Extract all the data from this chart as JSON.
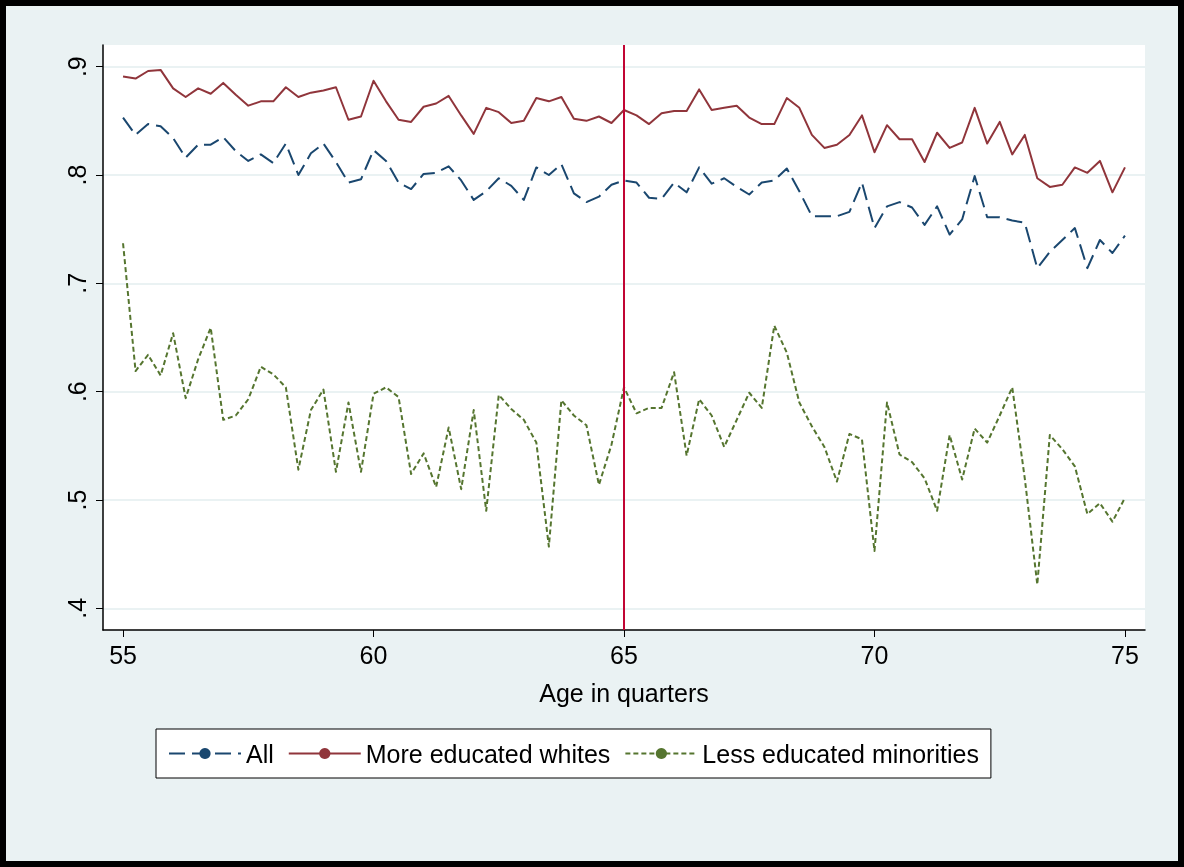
{
  "chart_data": {
    "type": "line",
    "xlabel": "Age in quarters",
    "x": [
      55,
      55.25,
      55.5,
      55.75,
      56,
      56.25,
      56.5,
      56.75,
      57,
      57.25,
      57.5,
      57.75,
      58,
      58.25,
      58.5,
      58.75,
      59,
      59.25,
      59.5,
      59.75,
      60,
      60.25,
      60.5,
      60.75,
      61,
      61.25,
      61.5,
      61.75,
      62,
      62.25,
      62.5,
      62.75,
      63,
      63.25,
      63.5,
      63.75,
      64,
      64.25,
      64.5,
      64.75,
      65,
      65.25,
      65.5,
      65.75,
      66,
      66.25,
      66.5,
      66.75,
      67,
      67.25,
      67.5,
      67.75,
      68,
      68.25,
      68.5,
      68.75,
      69,
      69.25,
      69.5,
      69.75,
      70,
      70.25,
      70.5,
      70.75,
      71,
      71.25,
      71.5,
      71.75,
      72,
      72.25,
      72.5,
      72.75,
      73,
      73.25,
      73.5,
      73.75,
      74,
      74.25,
      74.5,
      74.75,
      75
    ],
    "series": [
      {
        "name": "All",
        "color": "#1a476f",
        "line_style": "dashed",
        "values": [
          0.853,
          0.837,
          0.847,
          0.845,
          0.834,
          0.816,
          0.828,
          0.828,
          0.835,
          0.822,
          0.813,
          0.819,
          0.811,
          0.829,
          0.8,
          0.82,
          0.829,
          0.812,
          0.793,
          0.796,
          0.823,
          0.813,
          0.793,
          0.787,
          0.801,
          0.802,
          0.808,
          0.795,
          0.777,
          0.785,
          0.797,
          0.79,
          0.777,
          0.807,
          0.8,
          0.81,
          0.783,
          0.775,
          0.78,
          0.791,
          0.795,
          0.793,
          0.779,
          0.778,
          0.793,
          0.784,
          0.807,
          0.792,
          0.797,
          0.789,
          0.782,
          0.793,
          0.795,
          0.806,
          0.785,
          0.762,
          0.762,
          0.762,
          0.766,
          0.793,
          0.751,
          0.771,
          0.775,
          0.77,
          0.754,
          0.771,
          0.745,
          0.759,
          0.799,
          0.761,
          0.761,
          0.758,
          0.756,
          0.714,
          0.729,
          0.74,
          0.751,
          0.714,
          0.74,
          0.728,
          0.744
        ]
      },
      {
        "name": "More educated whites",
        "color": "#90353b",
        "line_style": "solid",
        "values": [
          0.891,
          0.889,
          0.896,
          0.897,
          0.88,
          0.872,
          0.88,
          0.875,
          0.885,
          0.874,
          0.864,
          0.868,
          0.868,
          0.881,
          0.872,
          0.876,
          0.878,
          0.881,
          0.851,
          0.854,
          0.887,
          0.868,
          0.851,
          0.849,
          0.863,
          0.866,
          0.873,
          0.855,
          0.838,
          0.862,
          0.858,
          0.848,
          0.85,
          0.871,
          0.868,
          0.872,
          0.852,
          0.85,
          0.854,
          0.848,
          0.86,
          0.855,
          0.847,
          0.857,
          0.859,
          0.859,
          0.879,
          0.86,
          0.862,
          0.864,
          0.853,
          0.847,
          0.847,
          0.871,
          0.862,
          0.837,
          0.825,
          0.828,
          0.837,
          0.855,
          0.821,
          0.846,
          0.833,
          0.833,
          0.812,
          0.839,
          0.825,
          0.83,
          0.862,
          0.829,
          0.849,
          0.819,
          0.837,
          0.797,
          0.789,
          0.791,
          0.807,
          0.802,
          0.813,
          0.784,
          0.807
        ]
      },
      {
        "name": "Less educated minorities",
        "color": "#55752f",
        "line_style": "dotted",
        "values": [
          0.737,
          0.619,
          0.634,
          0.615,
          0.654,
          0.594,
          0.63,
          0.659,
          0.574,
          0.578,
          0.593,
          0.623,
          0.616,
          0.604,
          0.528,
          0.583,
          0.602,
          0.526,
          0.59,
          0.526,
          0.598,
          0.604,
          0.595,
          0.524,
          0.543,
          0.512,
          0.567,
          0.51,
          0.583,
          0.49,
          0.597,
          0.584,
          0.574,
          0.553,
          0.457,
          0.592,
          0.578,
          0.569,
          0.514,
          0.551,
          0.604,
          0.58,
          0.585,
          0.585,
          0.618,
          0.541,
          0.593,
          0.578,
          0.549,
          0.574,
          0.599,
          0.585,
          0.661,
          0.636,
          0.59,
          0.568,
          0.549,
          0.517,
          0.561,
          0.556,
          0.453,
          0.59,
          0.542,
          0.535,
          0.52,
          0.49,
          0.56,
          0.519,
          0.566,
          0.553,
          0.578,
          0.604,
          0.52,
          0.422,
          0.56,
          0.547,
          0.531,
          0.487,
          0.497,
          0.48,
          0.502
        ]
      }
    ],
    "xlim": [
      54.6,
      75.4
    ],
    "xticks": [
      55,
      60,
      65,
      70,
      75
    ],
    "ylim": [
      0.38,
      0.92
    ],
    "yticks": [
      {
        "value": 0.4,
        "label": ".4"
      },
      {
        "value": 0.5,
        "label": ".5"
      },
      {
        "value": 0.6,
        "label": ".6"
      },
      {
        "value": 0.7,
        "label": ".7"
      },
      {
        "value": 0.8,
        "label": ".8"
      },
      {
        "value": 0.9,
        "label": ".9"
      }
    ],
    "ref_lines": [
      {
        "axis": "x",
        "value": 65,
        "color": "#c10534"
      }
    ],
    "grid": "y",
    "legend": "bottom",
    "marker": "none"
  }
}
